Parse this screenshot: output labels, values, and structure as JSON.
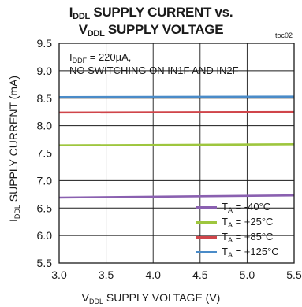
{
  "title": {
    "line1_prefix": "I",
    "line1_sub": "DDL",
    "line1_rest": " SUPPLY CURRENT vs.",
    "line2_prefix": "V",
    "line2_sub": "DDL",
    "line2_rest": " SUPPLY VOLTAGE"
  },
  "toc_code": "toc02",
  "annotation": {
    "line1_prefix": "I",
    "line1_sub": "DDF",
    "line1_rest": " = 220µA,",
    "line2": "NO SWITCHING ON IN1F AND IN2F"
  },
  "axis": {
    "x_prefix": "V",
    "x_sub": "DDL",
    "x_rest": " SUPPLY VOLTAGE (V)",
    "y_prefix": "I",
    "y_sub": "DDL",
    "y_rest": " SUPPLY CURRENT (mA)"
  },
  "legend": [
    {
      "prefix": "T",
      "sub": "A",
      "rest": " = -40°C",
      "color": "#8a60b0"
    },
    {
      "prefix": "T",
      "sub": "A",
      "rest": " = +25°C",
      "color": "#9ec63e"
    },
    {
      "prefix": "T",
      "sub": "A",
      "rest": " = +85°C",
      "color": "#d0454a"
    },
    {
      "prefix": "T",
      "sub": "A",
      "rest": " = +125°C",
      "color": "#4a8bc8"
    }
  ],
  "chart_data": {
    "type": "line",
    "xlim": [
      3.0,
      5.5
    ],
    "ylim": [
      5.5,
      9.5
    ],
    "xticks": [
      "3.0",
      "3.5",
      "4.0",
      "4.5",
      "5.0",
      "5.5"
    ],
    "yticks": [
      "5.5",
      "6.0",
      "6.5",
      "7.0",
      "7.5",
      "8.0",
      "8.5",
      "9.0",
      "9.5"
    ],
    "grid": true,
    "legend_position": "bottom-right",
    "series": [
      {
        "name": "TA = -40°C",
        "color": "#8a60b0",
        "x": [
          3.0,
          5.5
        ],
        "y": [
          6.69,
          6.73
        ]
      },
      {
        "name": "TA = +25°C",
        "color": "#9ec63e",
        "x": [
          3.0,
          5.5
        ],
        "y": [
          7.64,
          7.66
        ]
      },
      {
        "name": "TA = +85°C",
        "color": "#d0454a",
        "x": [
          3.0,
          5.5
        ],
        "y": [
          8.24,
          8.25
        ]
      },
      {
        "name": "TA = +125°C",
        "color": "#4a8bc8",
        "x": [
          3.0,
          5.5
        ],
        "y": [
          8.52,
          8.53
        ]
      }
    ]
  }
}
